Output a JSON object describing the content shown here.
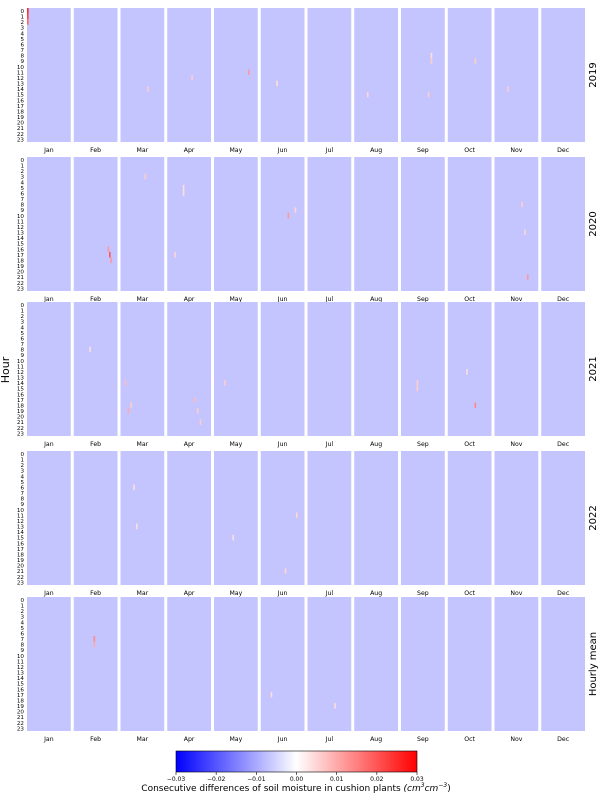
{
  "chart_data": {
    "type": "heatmap",
    "ylabel": "Hour",
    "colorbar_label": "Consecutive differences of soil moisture in cushion plants (cm³cm⁻³)",
    "colorbar_label_main": "Consecutive differences of soil moisture in cushion plants ",
    "colorbar_label_unit": "(cm",
    "colorbar_label_sup1": "3",
    "colorbar_label_unit2": "cm",
    "colorbar_label_sup2": "−3",
    "colorbar_label_close": ")",
    "colorbar_ticks": [
      "−0.03",
      "−0.02",
      "−0.01",
      "0.00",
      "0.01",
      "0.02",
      "0.03"
    ],
    "vmin": -0.03,
    "vmax": 0.03,
    "colormap": {
      "low": "#0000ff",
      "mid": "#ffffff",
      "high": "#ff0000"
    },
    "background_value": -0.007,
    "months": [
      "Jan",
      "Feb",
      "Mar",
      "Apr",
      "May",
      "Jun",
      "Jul",
      "Aug",
      "Sep",
      "Oct",
      "Nov",
      "Dec"
    ],
    "hours": [
      "0",
      "1",
      "2",
      "3",
      "4",
      "5",
      "6",
      "7",
      "8",
      "9",
      "10",
      "11",
      "12",
      "13",
      "14",
      "15",
      "16",
      "17",
      "18",
      "19",
      "20",
      "21",
      "22",
      "23"
    ],
    "rows": [
      {
        "label": "2019",
        "events": [
          {
            "month": "Jan",
            "day": 1,
            "hour": 0,
            "value": 0.025
          },
          {
            "month": "Jan",
            "day": 1,
            "hour": 1,
            "value": 0.022
          },
          {
            "month": "Jan",
            "day": 1,
            "hour": 2,
            "value": 0.018
          },
          {
            "month": "Mar",
            "day": 20,
            "hour": 14,
            "value": 0.006
          },
          {
            "month": "Apr",
            "day": 18,
            "hour": 12,
            "value": 0.006
          },
          {
            "month": "May",
            "day": 25,
            "hour": 11,
            "value": 0.012
          },
          {
            "month": "Jun",
            "day": 12,
            "hour": 13,
            "value": 0.004
          },
          {
            "month": "Aug",
            "day": 10,
            "hour": 15,
            "value": 0.005
          },
          {
            "month": "Sep",
            "day": 22,
            "hour": 8,
            "value": 0.004
          },
          {
            "month": "Sep",
            "day": 22,
            "hour": 9,
            "value": 0.006
          },
          {
            "month": "Sep",
            "day": 20,
            "hour": 15,
            "value": 0.006
          },
          {
            "month": "Oct",
            "day": 20,
            "hour": 9,
            "value": 0.006
          },
          {
            "month": "Nov",
            "day": 10,
            "hour": 14,
            "value": 0.006
          }
        ]
      },
      {
        "label": "2020",
        "events": [
          {
            "month": "Feb",
            "day": 26,
            "hour": 17,
            "value": 0.02
          },
          {
            "month": "Feb",
            "day": 25,
            "hour": 16,
            "value": 0.012
          },
          {
            "month": "Feb",
            "day": 27,
            "hour": 18,
            "value": 0.012
          },
          {
            "month": "Mar",
            "day": 18,
            "hour": 3,
            "value": 0.006
          },
          {
            "month": "Apr",
            "day": 12,
            "hour": 5,
            "value": 0.004
          },
          {
            "month": "Apr",
            "day": 12,
            "hour": 6,
            "value": 0.004
          },
          {
            "month": "Apr",
            "day": 6,
            "hour": 17,
            "value": 0.005
          },
          {
            "month": "Jun",
            "day": 20,
            "hour": 10,
            "value": 0.012
          },
          {
            "month": "Jun",
            "day": 25,
            "hour": 9,
            "value": 0.005
          },
          {
            "month": "Nov",
            "day": 20,
            "hour": 8,
            "value": 0.006
          },
          {
            "month": "Nov",
            "day": 22,
            "hour": 13,
            "value": 0.005
          },
          {
            "month": "Nov",
            "day": 24,
            "hour": 21,
            "value": 0.012
          }
        ]
      },
      {
        "label": "2021",
        "events": [
          {
            "month": "Feb",
            "day": 12,
            "hour": 8,
            "value": 0.004
          },
          {
            "month": "Mar",
            "day": 4,
            "hour": 14,
            "value": 0.008
          },
          {
            "month": "Mar",
            "day": 8,
            "hour": 18,
            "value": 0.006
          },
          {
            "month": "Mar",
            "day": 6,
            "hour": 19,
            "value": 0.01
          },
          {
            "month": "Apr",
            "day": 20,
            "hour": 17,
            "value": 0.008
          },
          {
            "month": "Apr",
            "day": 22,
            "hour": 19,
            "value": 0.006
          },
          {
            "month": "Apr",
            "day": 24,
            "hour": 21,
            "value": 0.006
          },
          {
            "month": "May",
            "day": 8,
            "hour": 14,
            "value": 0.006
          },
          {
            "month": "Sep",
            "day": 12,
            "hour": 14,
            "value": 0.006
          },
          {
            "month": "Sep",
            "day": 12,
            "hour": 15,
            "value": 0.006
          },
          {
            "month": "Oct",
            "day": 20,
            "hour": 18,
            "value": 0.014
          },
          {
            "month": "Oct",
            "day": 14,
            "hour": 12,
            "value": 0.004
          }
        ]
      },
      {
        "label": "2022",
        "events": [
          {
            "month": "Mar",
            "day": 10,
            "hour": 6,
            "value": 0.004
          },
          {
            "month": "Mar",
            "day": 12,
            "hour": 13,
            "value": 0.004
          },
          {
            "month": "May",
            "day": 14,
            "hour": 15,
            "value": 0.004
          },
          {
            "month": "Jun",
            "day": 26,
            "hour": 11,
            "value": 0.005
          },
          {
            "month": "Jun",
            "day": 18,
            "hour": 21,
            "value": 0.005
          }
        ]
      },
      {
        "label": "Hourly mean",
        "events": [
          {
            "month": "Feb",
            "day": 15,
            "hour": 7,
            "value": 0.014
          },
          {
            "month": "Feb",
            "day": 15,
            "hour": 8,
            "value": 0.01
          },
          {
            "month": "Jun",
            "day": 8,
            "hour": 17,
            "value": 0.004
          },
          {
            "month": "Jul",
            "day": 20,
            "hour": 19,
            "value": 0.004
          }
        ]
      }
    ]
  }
}
